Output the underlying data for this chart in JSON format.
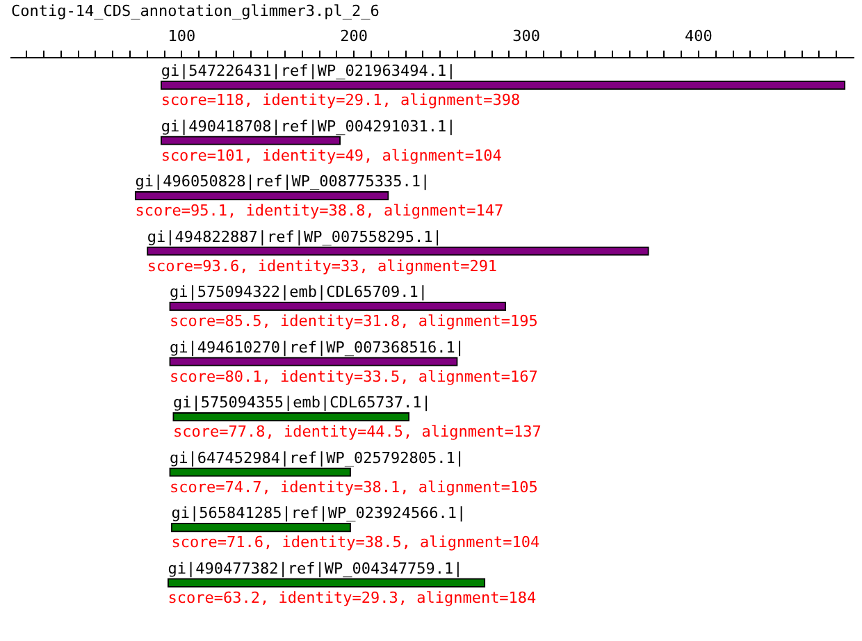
{
  "chart_data": {
    "type": "bar",
    "orientation": "horizontal",
    "title": "Contig-14_CDS_annotation_glimmer3.pl_2_6",
    "categories": [
      "gi|547226431|ref|WP_021963494.1|",
      "gi|490418708|ref|WP_004291031.1|",
      "gi|496050828|ref|WP_008775335.1|",
      "gi|494822887|ref|WP_007558295.1|",
      "gi|575094322|emb|CDL65709.1|",
      "gi|494610270|ref|WP_007368516.1|",
      "gi|575094355|emb|CDL65737.1|",
      "gi|647452984|ref|WP_025792805.1|",
      "gi|565841285|ref|WP_023924566.1|",
      "gi|490477382|ref|WP_004347759.1|"
    ],
    "base": [
      88,
      88,
      73,
      80,
      93,
      93,
      95,
      93,
      94,
      92
    ],
    "values": [
      397,
      104,
      147,
      291,
      195,
      167,
      137,
      105,
      104,
      184
    ],
    "colors": [
      "#800080",
      "#800080",
      "#800080",
      "#800080",
      "#800080",
      "#800080",
      "#008000",
      "#008000",
      "#008000",
      "#008000"
    ],
    "value_labels": [
      "score=118, identity=29.1, alignment=398",
      "score=101, identity=49, alignment=104",
      "score=95.1, identity=38.8, alignment=147",
      "score=93.6, identity=33, alignment=291",
      "score=85.5, identity=31.8, alignment=195",
      "score=80.1, identity=33.5, alignment=167",
      "score=77.8, identity=44.5, alignment=137",
      "score=74.7, identity=38.1, alignment=105",
      "score=71.6, identity=38.5, alignment=104",
      "score=63.2, identity=29.3, alignment=184"
    ],
    "xlim": [
      1,
      490
    ],
    "xticks": [
      {
        "value": 10,
        "label": null
      },
      {
        "value": 20,
        "label": null
      },
      {
        "value": 30,
        "label": null
      },
      {
        "value": 40,
        "label": null
      },
      {
        "value": 50,
        "label": null
      },
      {
        "value": 60,
        "label": null
      },
      {
        "value": 70,
        "label": null
      },
      {
        "value": 80,
        "label": null
      },
      {
        "value": 90,
        "label": null
      },
      100,
      {
        "value": 110,
        "label": null
      },
      {
        "value": 120,
        "label": null
      },
      {
        "value": 130,
        "label": null
      },
      {
        "value": 140,
        "label": null
      },
      {
        "value": 150,
        "label": null
      },
      {
        "value": 160,
        "label": null
      },
      {
        "value": 170,
        "label": null
      },
      {
        "value": 180,
        "label": null
      },
      {
        "value": 190,
        "label": null
      },
      200,
      {
        "value": 210,
        "label": null
      },
      {
        "value": 220,
        "label": null
      },
      {
        "value": 230,
        "label": null
      },
      {
        "value": 240,
        "label": null
      },
      {
        "value": 250,
        "label": null
      },
      {
        "value": 260,
        "label": null
      },
      {
        "value": 270,
        "label": null
      },
      {
        "value": 280,
        "label": null
      },
      {
        "value": 290,
        "label": null
      },
      300,
      {
        "value": 310,
        "label": null
      },
      {
        "value": 320,
        "label": null
      },
      {
        "value": 330,
        "label": null
      },
      {
        "value": 340,
        "label": null
      },
      {
        "value": 350,
        "label": null
      },
      {
        "value": 360,
        "label": null
      },
      {
        "value": 370,
        "label": null
      },
      {
        "value": 380,
        "label": null
      },
      {
        "value": 390,
        "label": null
      },
      400,
      {
        "value": 410,
        "label": null
      },
      {
        "value": 420,
        "label": null
      },
      {
        "value": 430,
        "label": null
      },
      {
        "value": 440,
        "label": null
      },
      {
        "value": 450,
        "label": null
      },
      {
        "value": 460,
        "label": null
      },
      {
        "value": 470,
        "label": null
      },
      {
        "value": 480,
        "label": null
      }
    ],
    "grid": false,
    "legend": false
  }
}
